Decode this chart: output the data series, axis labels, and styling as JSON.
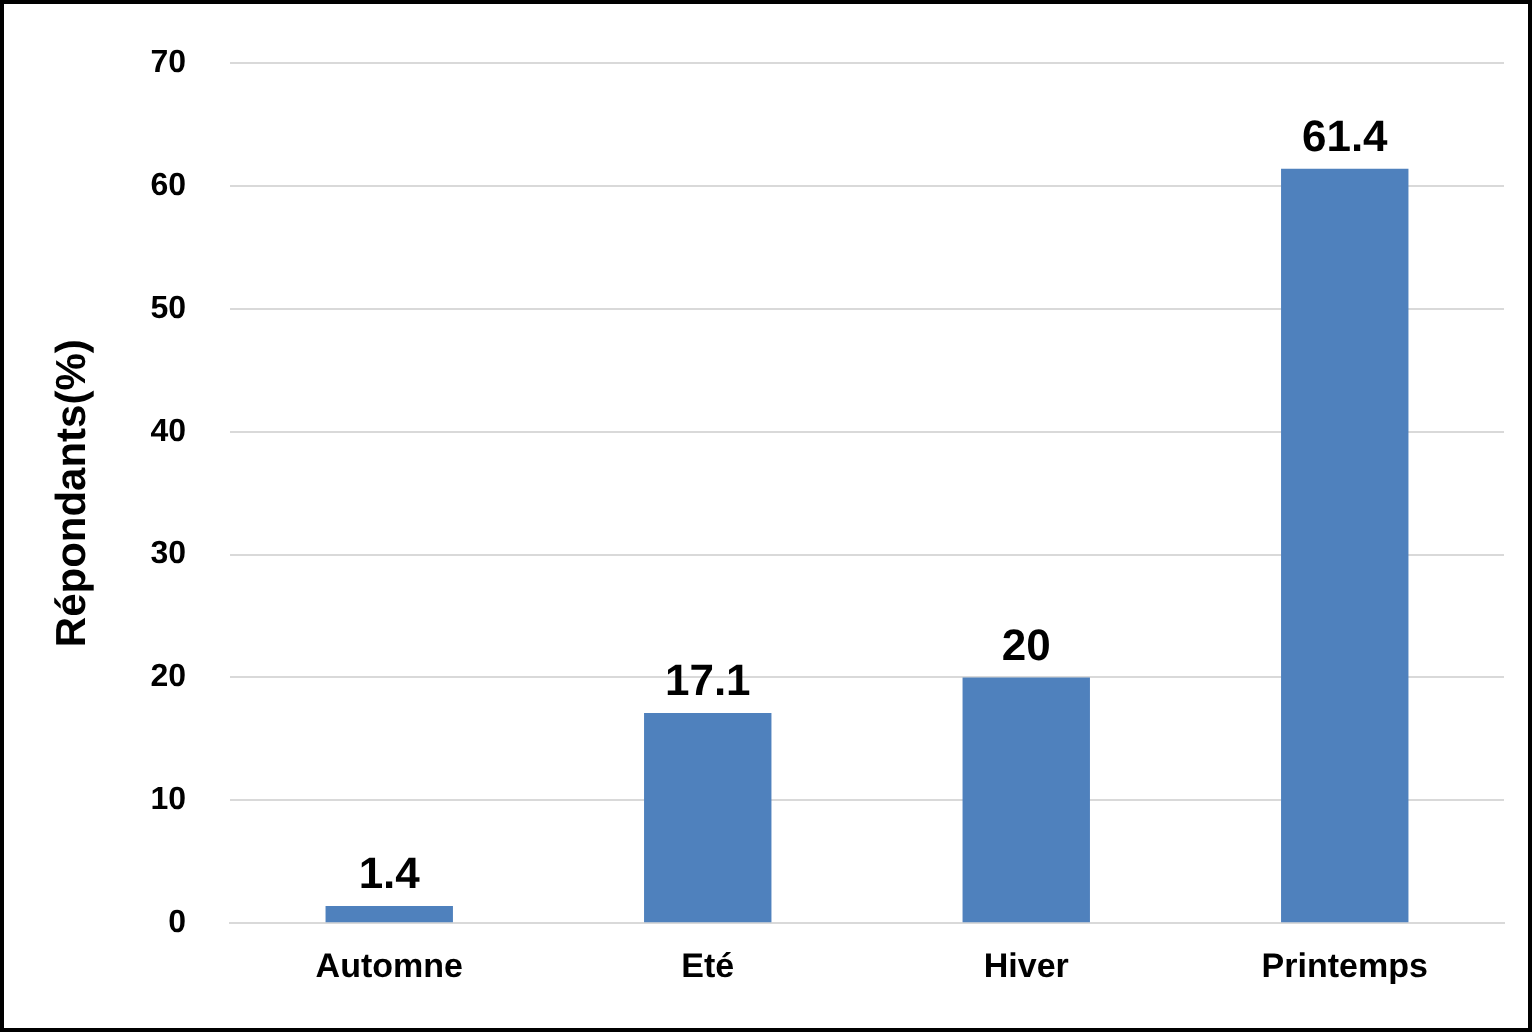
{
  "chart_data": {
    "type": "bar",
    "ylabel": "Répondants(%)",
    "categories": [
      "Automne",
      "Eté",
      "Hiver",
      "Printemps"
    ],
    "values": [
      1.4,
      17.1,
      20,
      61.4
    ],
    "color": "#4f81bd",
    "ylim": [
      0,
      70
    ],
    "yticks": [
      0,
      10,
      20,
      30,
      40,
      50,
      60,
      70
    ],
    "grid": "y",
    "data_labels": true,
    "legend": false
  }
}
